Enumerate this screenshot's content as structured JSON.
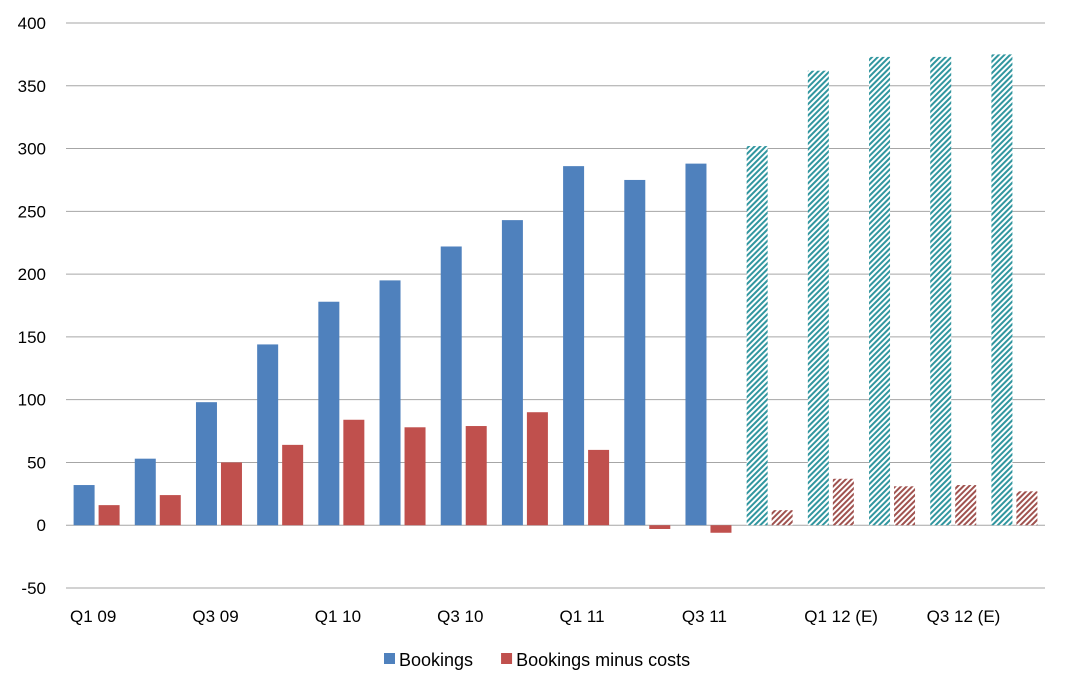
{
  "chart_data": {
    "type": "bar",
    "title": "",
    "xlabel": "",
    "ylabel": "",
    "ylim": [
      -50,
      400
    ],
    "yticks": [
      -50,
      0,
      50,
      100,
      150,
      200,
      250,
      300,
      350,
      400
    ],
    "grid": true,
    "legend_position": "bottom",
    "x_tick_labels": [
      {
        "category_index": 0,
        "label": "Q1 09"
      },
      {
        "category_index": 2,
        "label": "Q3 09"
      },
      {
        "category_index": 4,
        "label": "Q1 10"
      },
      {
        "category_index": 6,
        "label": "Q3 10"
      },
      {
        "category_index": 8,
        "label": "Q1 11"
      },
      {
        "category_index": 10,
        "label": "Q3 11"
      },
      {
        "category_index": 12,
        "label": "Q1 12 (E)"
      },
      {
        "category_index": 14,
        "label": "Q3 12 (E)"
      }
    ],
    "categories": [
      "Q1 09",
      "Q2 09",
      "Q3 09",
      "Q4 09",
      "Q1 10",
      "Q2 10",
      "Q3 10",
      "Q4 10",
      "Q1 11",
      "Q2 11",
      "Q3 11",
      "Q4 11",
      "Q1 12 (E)",
      "Q2 12 (E)",
      "Q3 12 (E)",
      "Q4 12 (E)"
    ],
    "estimated_from_index": 11,
    "series": [
      {
        "name": "Bookings",
        "color": "#4f81bd",
        "estimate_color": "#31969f",
        "values": [
          32,
          53,
          98,
          144,
          178,
          195,
          222,
          243,
          286,
          275,
          288,
          302,
          362,
          373,
          373,
          375
        ]
      },
      {
        "name": "Bookings minus costs",
        "color": "#c0504d",
        "estimate_color": "#a0524f",
        "values": [
          16,
          24,
          50,
          64,
          84,
          78,
          79,
          90,
          60,
          -3,
          -6,
          12,
          37,
          31,
          32,
          27
        ]
      }
    ]
  }
}
